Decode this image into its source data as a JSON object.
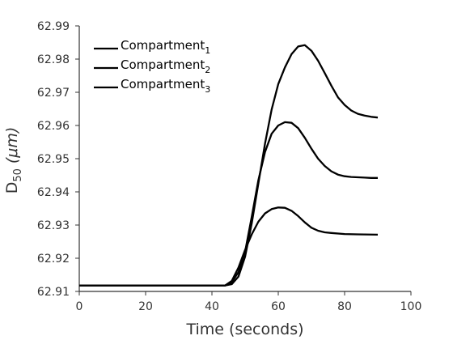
{
  "chart_data": {
    "type": "line",
    "xlabel": "Time (seconds)",
    "ylabel_main": "D",
    "ylabel_sub": "50",
    "ylabel_unit": "(μm)",
    "xlim": [
      0,
      100
    ],
    "ylim": [
      62.91,
      62.99
    ],
    "x_ticks": [
      "0",
      "20",
      "40",
      "60",
      "80",
      "100"
    ],
    "y_ticks": [
      "62.91",
      "62.92",
      "62.93",
      "62.94",
      "62.95",
      "62.96",
      "62.97",
      "62.98",
      "62.99"
    ],
    "grid": false,
    "legend_position": "top-left",
    "line_color": "#000000",
    "series": [
      {
        "name": "Compartment",
        "subscript": "1",
        "points": [
          [
            0,
            62.9118
          ],
          [
            44,
            62.9118
          ],
          [
            46,
            62.9122
          ],
          [
            48,
            62.9145
          ],
          [
            50,
            62.9205
          ],
          [
            52,
            62.9305
          ],
          [
            54,
            62.9425
          ],
          [
            56,
            62.9545
          ],
          [
            58,
            62.9648
          ],
          [
            60,
            62.9725
          ],
          [
            62,
            62.9775
          ],
          [
            64,
            62.9815
          ],
          [
            66,
            62.9838
          ],
          [
            68,
            62.9842
          ],
          [
            70,
            62.9825
          ],
          [
            72,
            62.9795
          ],
          [
            74,
            62.9758
          ],
          [
            76,
            62.972
          ],
          [
            78,
            62.9685
          ],
          [
            80,
            62.9662
          ],
          [
            82,
            62.9645
          ],
          [
            84,
            62.9635
          ],
          [
            86,
            62.963
          ],
          [
            88,
            62.9626
          ],
          [
            90,
            62.9624
          ]
        ]
      },
      {
        "name": "Compartment",
        "subscript": "2",
        "points": [
          [
            0,
            62.9118
          ],
          [
            44,
            62.9118
          ],
          [
            46,
            62.9128
          ],
          [
            48,
            62.9158
          ],
          [
            50,
            62.922
          ],
          [
            52,
            62.9325
          ],
          [
            54,
            62.9435
          ],
          [
            56,
            62.952
          ],
          [
            58,
            62.9575
          ],
          [
            60,
            62.96
          ],
          [
            62,
            62.961
          ],
          [
            64,
            62.9608
          ],
          [
            66,
            62.9592
          ],
          [
            68,
            62.9563
          ],
          [
            70,
            62.953
          ],
          [
            72,
            62.95
          ],
          [
            74,
            62.9478
          ],
          [
            76,
            62.9462
          ],
          [
            78,
            62.9452
          ],
          [
            80,
            62.9447
          ],
          [
            82,
            62.9445
          ],
          [
            84,
            62.9444
          ],
          [
            86,
            62.9443
          ],
          [
            88,
            62.9442
          ],
          [
            90,
            62.9442
          ]
        ]
      },
      {
        "name": "Compartment",
        "subscript": "3",
        "points": [
          [
            0,
            62.9118
          ],
          [
            44,
            62.9118
          ],
          [
            46,
            62.9132
          ],
          [
            48,
            62.9172
          ],
          [
            50,
            62.9225
          ],
          [
            52,
            62.9272
          ],
          [
            54,
            62.931
          ],
          [
            56,
            62.9335
          ],
          [
            58,
            62.9348
          ],
          [
            60,
            62.9353
          ],
          [
            62,
            62.9352
          ],
          [
            64,
            62.9343
          ],
          [
            66,
            62.9327
          ],
          [
            68,
            62.9308
          ],
          [
            70,
            62.9292
          ],
          [
            72,
            62.9283
          ],
          [
            74,
            62.9278
          ],
          [
            76,
            62.9276
          ],
          [
            80,
            62.9273
          ],
          [
            84,
            62.9272
          ],
          [
            90,
            62.9271
          ]
        ]
      }
    ]
  }
}
